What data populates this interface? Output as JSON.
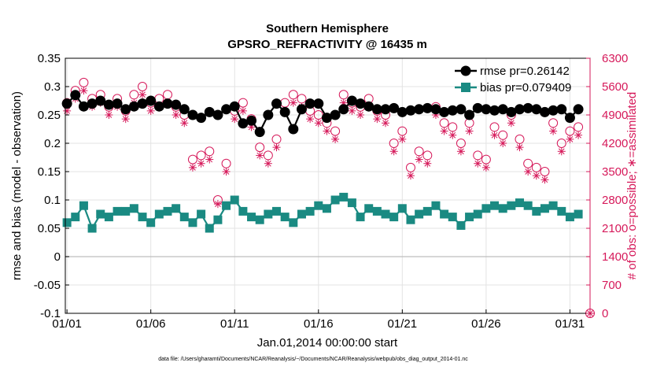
{
  "chart_data": {
    "type": "line",
    "title": "Southern Hemisphere",
    "subtitle": "GPSRO_REFRACTIVITY @ 16435 m",
    "xlabel": "Jan.01,2014 00:00:00 start",
    "ylabel": "rmse and bias (model - observation)",
    "y2label": "# of obs: o=possible; ∗=assimilated",
    "footnote": "data file: /Users/gharamti/Documents/NCAR/Reanalysis/~/Documents/NCAR/Reanalysis/webpub/obs_diag_output_2014-01.nc",
    "x_tick_labels": [
      "01/01",
      "01/06",
      "01/11",
      "01/16",
      "01/21",
      "01/26",
      "01/31"
    ],
    "x_tick_days": [
      1,
      6,
      11,
      16,
      21,
      26,
      31
    ],
    "xlim": [
      0.9,
      32.2
    ],
    "ylim": [
      -0.1,
      0.35
    ],
    "y_ticks": [
      "-0.1",
      "-0.05",
      "0",
      "0.05",
      "0.1",
      "0.15",
      "0.2",
      "0.25",
      "0.3",
      "0.35"
    ],
    "y2lim": [
      0,
      6300
    ],
    "y2_ticks": [
      "0",
      "700",
      "1400",
      "2100",
      "2800",
      "3500",
      "4200",
      "4900",
      "5600",
      "6300"
    ],
    "legend": [
      {
        "label": "rmse pr=0.26142",
        "color": "#000000",
        "marker": "circle"
      },
      {
        "label": "bias pr=0.079409",
        "color": "#1a8a82",
        "marker": "square"
      }
    ],
    "series": [
      {
        "name": "rmse",
        "axis": "left",
        "color": "#000000",
        "x": [
          1.0,
          1.5,
          2.0,
          2.5,
          3.0,
          3.5,
          4.0,
          4.5,
          5.0,
          5.5,
          6.0,
          6.5,
          7.0,
          7.5,
          8.0,
          8.5,
          9.0,
          9.5,
          10.0,
          10.5,
          11.0,
          11.5,
          12.0,
          12.5,
          13.0,
          13.5,
          14.0,
          14.5,
          15.0,
          15.5,
          16.0,
          16.5,
          17.0,
          17.5,
          18.0,
          18.5,
          19.0,
          19.5,
          20.0,
          20.5,
          21.0,
          21.5,
          22.0,
          22.5,
          23.0,
          23.5,
          24.0,
          24.5,
          25.0,
          25.5,
          26.0,
          26.5,
          27.0,
          27.5,
          28.0,
          28.5,
          29.0,
          29.5,
          30.0,
          30.5,
          31.0,
          31.5
        ],
        "values": [
          0.27,
          0.285,
          0.265,
          0.27,
          0.275,
          0.268,
          0.27,
          0.26,
          0.265,
          0.27,
          0.275,
          0.265,
          0.27,
          0.268,
          0.26,
          0.25,
          0.245,
          0.255,
          0.25,
          0.26,
          0.265,
          0.235,
          0.24,
          0.22,
          0.25,
          0.27,
          0.255,
          0.225,
          0.26,
          0.27,
          0.27,
          0.245,
          0.25,
          0.26,
          0.275,
          0.27,
          0.265,
          0.26,
          0.26,
          0.262,
          0.255,
          0.258,
          0.26,
          0.262,
          0.26,
          0.255,
          0.258,
          0.26,
          0.25,
          0.262,
          0.26,
          0.258,
          0.26,
          0.255,
          0.26,
          0.262,
          0.26,
          0.255,
          0.258,
          0.26,
          0.245,
          0.26
        ]
      },
      {
        "name": "bias",
        "axis": "left",
        "color": "#1a8a82",
        "x": [
          1.0,
          1.5,
          2.0,
          2.5,
          3.0,
          3.5,
          4.0,
          4.5,
          5.0,
          5.5,
          6.0,
          6.5,
          7.0,
          7.5,
          8.0,
          8.5,
          9.0,
          9.5,
          10.0,
          10.5,
          11.0,
          11.5,
          12.0,
          12.5,
          13.0,
          13.5,
          14.0,
          14.5,
          15.0,
          15.5,
          16.0,
          16.5,
          17.0,
          17.5,
          18.0,
          18.5,
          19.0,
          19.5,
          20.0,
          20.5,
          21.0,
          21.5,
          22.0,
          22.5,
          23.0,
          23.5,
          24.0,
          24.5,
          25.0,
          25.5,
          26.0,
          26.5,
          27.0,
          27.5,
          28.0,
          28.5,
          29.0,
          29.5,
          30.0,
          30.5,
          31.0,
          31.5
        ],
        "values": [
          0.06,
          0.07,
          0.09,
          0.05,
          0.075,
          0.07,
          0.08,
          0.08,
          0.085,
          0.07,
          0.06,
          0.075,
          0.08,
          0.085,
          0.07,
          0.06,
          0.075,
          0.05,
          0.065,
          0.09,
          0.1,
          0.08,
          0.07,
          0.065,
          0.075,
          0.08,
          0.07,
          0.06,
          0.075,
          0.08,
          0.09,
          0.085,
          0.1,
          0.105,
          0.095,
          0.07,
          0.085,
          0.08,
          0.075,
          0.07,
          0.085,
          0.065,
          0.075,
          0.08,
          0.09,
          0.075,
          0.07,
          0.055,
          0.07,
          0.075,
          0.085,
          0.09,
          0.085,
          0.09,
          0.095,
          0.09,
          0.08,
          0.085,
          0.09,
          0.08,
          0.07,
          0.075
        ]
      },
      {
        "name": "possible obs",
        "axis": "right",
        "color": "#d6195a",
        "marker": "open-circle",
        "x": [
          1.0,
          1.5,
          2.0,
          2.5,
          3.0,
          3.5,
          4.0,
          4.5,
          5.0,
          5.5,
          6.0,
          6.5,
          7.0,
          7.5,
          8.0,
          8.5,
          9.0,
          9.5,
          10.0,
          10.5,
          11.0,
          11.5,
          12.0,
          12.5,
          13.0,
          13.5,
          14.0,
          14.5,
          15.0,
          15.5,
          16.0,
          16.5,
          17.0,
          17.5,
          18.0,
          18.5,
          19.0,
          19.5,
          20.0,
          20.5,
          21.0,
          21.5,
          22.0,
          22.5,
          23.0,
          23.5,
          24.0,
          24.5,
          25.0,
          25.5,
          26.0,
          26.5,
          27.0,
          27.5,
          28.0,
          28.5,
          29.0,
          29.5,
          30.0,
          30.5,
          31.0,
          31.5
        ],
        "values": [
          5200,
          5500,
          5700,
          5300,
          5400,
          5100,
          5300,
          5000,
          5400,
          5600,
          5200,
          5300,
          5400,
          5100,
          4900,
          3800,
          3900,
          4000,
          2800,
          3700,
          5000,
          5200,
          4800,
          4100,
          3900,
          4300,
          5200,
          5400,
          5300,
          5000,
          4900,
          4700,
          4500,
          5400,
          5200,
          5100,
          5300,
          5000,
          4900,
          4200,
          4500,
          3600,
          4000,
          3900,
          5100,
          4700,
          4600,
          4200,
          4700,
          3900,
          3800,
          4600,
          4400,
          4900,
          4300,
          3700,
          3600,
          3500,
          4700,
          4200,
          4500,
          4600
        ]
      },
      {
        "name": "assimilated obs",
        "axis": "right",
        "color": "#d6195a",
        "marker": "asterisk",
        "x": [
          1.0,
          1.5,
          2.0,
          2.5,
          3.0,
          3.5,
          4.0,
          4.5,
          5.0,
          5.5,
          6.0,
          6.5,
          7.0,
          7.5,
          8.0,
          8.5,
          9.0,
          9.5,
          10.0,
          10.5,
          11.0,
          11.5,
          12.0,
          12.5,
          13.0,
          13.5,
          14.0,
          14.5,
          15.0,
          15.5,
          16.0,
          16.5,
          17.0,
          17.5,
          18.0,
          18.5,
          19.0,
          19.5,
          20.0,
          20.5,
          21.0,
          21.5,
          22.0,
          22.5,
          23.0,
          23.5,
          24.0,
          24.5,
          25.0,
          25.5,
          26.0,
          26.5,
          27.0,
          27.5,
          28.0,
          28.5,
          29.0,
          29.5,
          30.0,
          30.5,
          31.0,
          31.5
        ],
        "values": [
          5000,
          5300,
          5500,
          5100,
          5200,
          4900,
          5100,
          4800,
          5200,
          5400,
          5000,
          5100,
          5200,
          4900,
          4700,
          3600,
          3700,
          3800,
          2700,
          3500,
          4800,
          5000,
          4600,
          3900,
          3700,
          4100,
          5000,
          5200,
          5100,
          4800,
          4700,
          4500,
          4300,
          5200,
          5000,
          4900,
          5100,
          4800,
          4700,
          4000,
          4300,
          3400,
          3800,
          3700,
          4900,
          4500,
          4400,
          4000,
          4500,
          3700,
          3600,
          4400,
          4200,
          4700,
          4100,
          3500,
          3400,
          3300,
          4500,
          4000,
          4300,
          4400
        ]
      }
    ],
    "end_marker": {
      "day": 32.2,
      "value": 0,
      "label": "possible obs at end"
    }
  }
}
